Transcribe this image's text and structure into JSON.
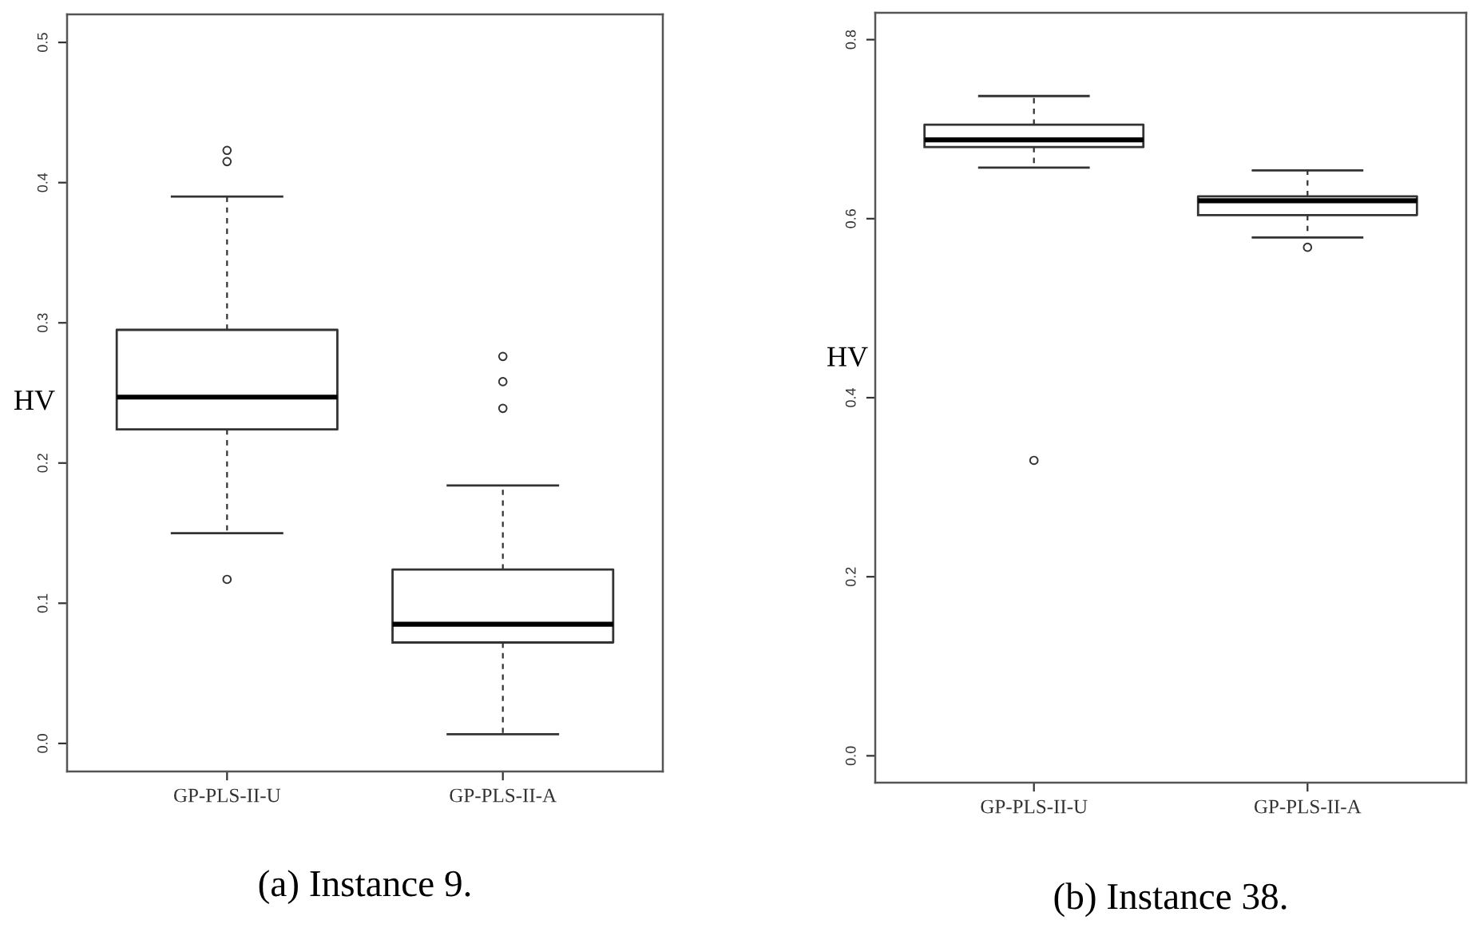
{
  "chart_data": [
    {
      "type": "box",
      "title": "(a) Instance 9.",
      "ylabel": "HV",
      "categories": [
        "GP-PLS-II-U",
        "GP-PLS-II-A"
      ],
      "boxes": [
        {
          "low": 0.15,
          "q1": 0.224,
          "median": 0.247,
          "q3": 0.295,
          "high": 0.39,
          "outliers": [
            0.117,
            0.415,
            0.423
          ]
        },
        {
          "low": 0.0065,
          "q1": 0.072,
          "median": 0.085,
          "q3": 0.124,
          "high": 0.184,
          "outliers": [
            0.239,
            0.258,
            0.276
          ]
        }
      ],
      "ylim": [
        -0.02,
        0.52
      ],
      "yticks": [
        {
          "value": 0,
          "label": "0.0"
        },
        0.1,
        0.2,
        0.3,
        0.4,
        0.5
      ]
    },
    {
      "type": "box",
      "title": "(b) Instance 38.",
      "ylabel": "HV",
      "categories": [
        "GP-PLS-II-U",
        "GP-PLS-II-A"
      ],
      "boxes": [
        {
          "low": 0.657,
          "q1": 0.68,
          "median": 0.688,
          "q3": 0.705,
          "high": 0.737,
          "outliers": [
            0.33
          ]
        },
        {
          "low": 0.579,
          "q1": 0.604,
          "median": 0.62,
          "q3": 0.625,
          "high": 0.654,
          "outliers": [
            0.568
          ]
        }
      ],
      "ylim": [
        -0.03,
        0.83
      ],
      "yticks": [
        {
          "value": 0,
          "label": "0.0"
        },
        0.2,
        0.4,
        0.6,
        0.8
      ]
    }
  ]
}
